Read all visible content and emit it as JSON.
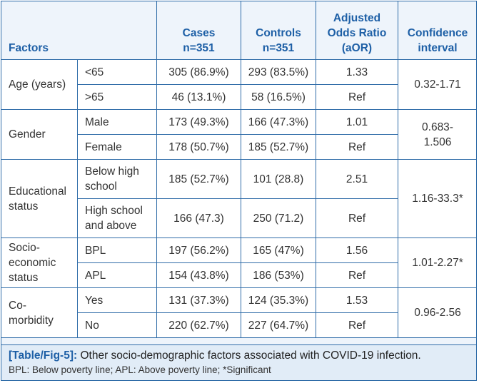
{
  "header": {
    "factors": "Factors",
    "cases_1": "Cases",
    "cases_2": "n=351",
    "controls_1": "Controls",
    "controls_2": "n=351",
    "aor_1": "Adjusted",
    "aor_2": "Odds Ratio",
    "aor_3": "(aOR)",
    "ci_1": "Confidence",
    "ci_2": "interval"
  },
  "groups": [
    {
      "factor": "Age (years)",
      "ci": "0.32-1.71",
      "rows": [
        {
          "sub": "<65",
          "cases": "305 (86.9%)",
          "controls": "293 (83.5%)",
          "aor": "1.33"
        },
        {
          "sub": ">65",
          "cases": "46 (13.1%)",
          "controls": "58 (16.5%)",
          "aor": "Ref"
        }
      ]
    },
    {
      "factor": "Gender",
      "ci_1": "0.683-",
      "ci_2": "1.506",
      "rows": [
        {
          "sub": "Male",
          "cases": "173 (49.3%)",
          "controls": "166 (47.3%)",
          "aor": "1.01"
        },
        {
          "sub": "Female",
          "cases": "178 (50.7%)",
          "controls": "185 (52.7%)",
          "aor": "Ref"
        }
      ]
    },
    {
      "factor_1": "Educational",
      "factor_2": "status",
      "ci": "1.16-33.3*",
      "rows": [
        {
          "sub_1": "Below high",
          "sub_2": "school",
          "cases": "185 (52.7%)",
          "controls": "101 (28.8)",
          "aor": "2.51"
        },
        {
          "sub_1": "High school",
          "sub_2": "and above",
          "cases": "166 (47.3)",
          "controls": "250 (71.2)",
          "aor": "Ref"
        }
      ]
    },
    {
      "factor_1": "Socio-",
      "factor_2": "economic",
      "factor_3": "status",
      "ci": "1.01-2.27*",
      "rows": [
        {
          "sub": "BPL",
          "cases": "197 (56.2%)",
          "controls": "165 (47%)",
          "aor": "1.56"
        },
        {
          "sub": "APL",
          "cases": "154 (43.8%)",
          "controls": "186 (53%)",
          "aor": "Ref"
        }
      ]
    },
    {
      "factor_1": "Co-",
      "factor_2": "morbidity",
      "ci": "0.96-2.56",
      "rows": [
        {
          "sub": "Yes",
          "cases": "131 (37.3%)",
          "controls": "124 (35.3%)",
          "aor": "1.53"
        },
        {
          "sub": "No",
          "cases": "220 (62.7%)",
          "controls": "227 (64.7%)",
          "aor": "Ref"
        }
      ]
    }
  ],
  "caption": {
    "label": "[Table/Fig-5]:",
    "text": "Other socio-demographic factors associated with COVID-19 infection.",
    "note": "BPL: Below poverty line; APL: Above poverty line; *Significant"
  },
  "colors": {
    "accent": "#1d5fa6",
    "border": "#2f6ca8",
    "header_bg": "#eef4fb",
    "caption_bg": "#e1ecf7"
  }
}
